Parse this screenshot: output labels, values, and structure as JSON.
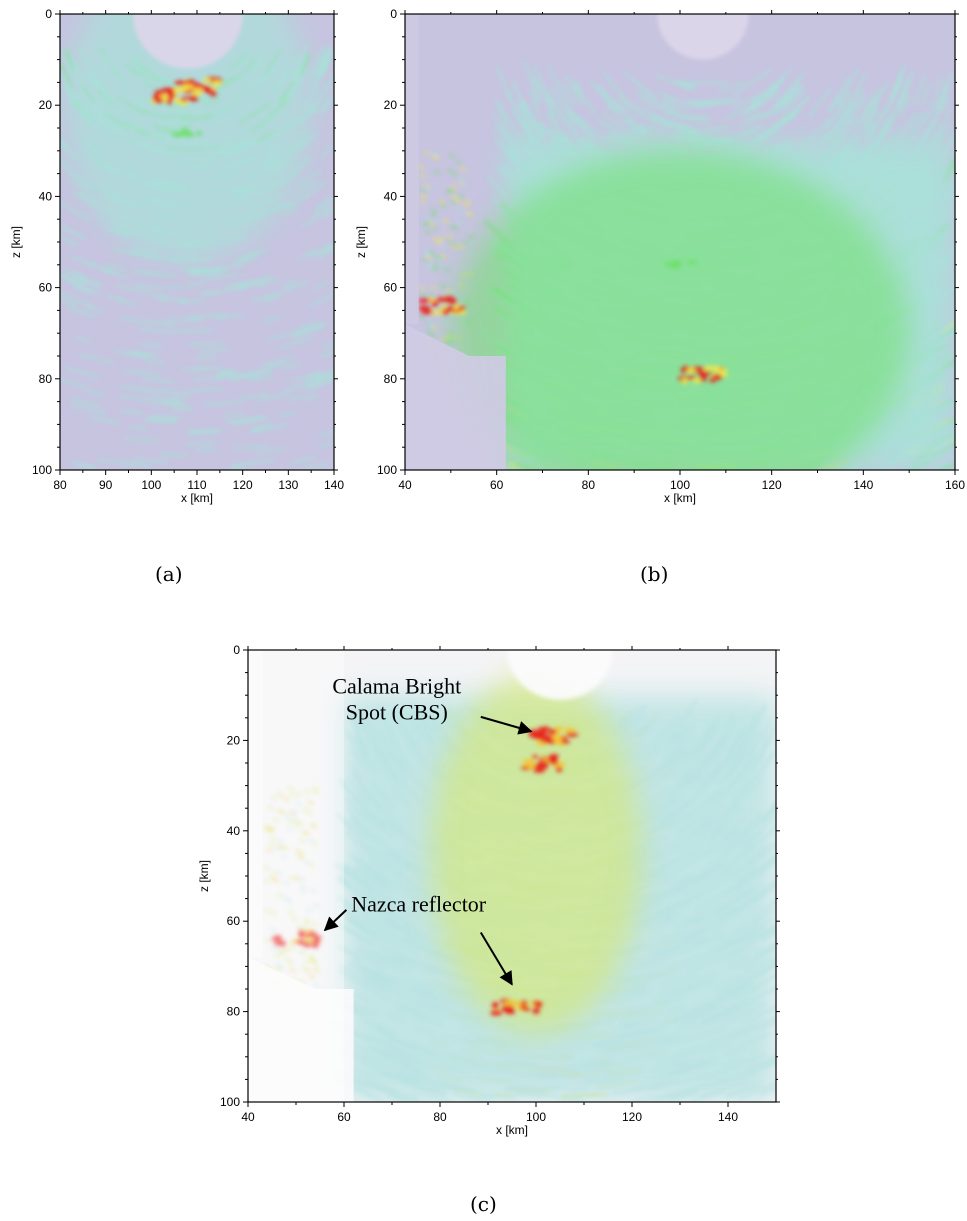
{
  "figure": {
    "captions": {
      "a": "(a)",
      "b": "(b)",
      "c": "(c)"
    }
  },
  "chart_data": [
    {
      "id": "a",
      "type": "heatmap",
      "xlabel": "x [km]",
      "ylabel": "z [km]",
      "xlim": [
        80,
        140
      ],
      "ylim": [
        0,
        100
      ],
      "y_inverted": true,
      "xticks": [
        80,
        90,
        100,
        110,
        120,
        130,
        140
      ],
      "yticks": [
        0,
        20,
        40,
        60,
        80,
        100
      ],
      "colormap": [
        "#c7c4e0",
        "#a9e1d9",
        "#6fe06b",
        "#f2e84a",
        "#e8241c"
      ],
      "features": [
        {
          "kind": "bright",
          "x": 110,
          "z": 16,
          "strength": 1.0
        },
        {
          "kind": "bright",
          "x": 105,
          "z": 18,
          "strength": 0.9
        },
        {
          "kind": "moderate",
          "x": 108,
          "z": 26,
          "strength": 0.5
        }
      ]
    },
    {
      "id": "b",
      "type": "heatmap",
      "xlabel": "x [km]",
      "ylabel": "z [km]",
      "xlim": [
        40,
        160
      ],
      "ylim": [
        0,
        100
      ],
      "y_inverted": true,
      "xticks": [
        40,
        60,
        80,
        100,
        120,
        140,
        160
      ],
      "yticks": [
        0,
        20,
        40,
        60,
        80,
        100
      ],
      "colormap": [
        "#c7c4e0",
        "#a9e1d9",
        "#6fe06b",
        "#f2e84a",
        "#e8241c"
      ],
      "features": [
        {
          "kind": "bright",
          "x": 105,
          "z": 79,
          "strength": 1.0
        },
        {
          "kind": "bright",
          "x": 48,
          "z": 64,
          "strength": 0.8
        },
        {
          "kind": "moderate",
          "x": 100,
          "z": 55,
          "strength": 0.4
        }
      ]
    },
    {
      "id": "c",
      "type": "heatmap",
      "xlabel": "x [km]",
      "ylabel": "z [km]",
      "xlim": [
        40,
        150
      ],
      "ylim": [
        0,
        100
      ],
      "y_inverted": true,
      "xticks": [
        40,
        60,
        80,
        100,
        120,
        140
      ],
      "yticks": [
        0,
        20,
        40,
        60,
        80,
        100
      ],
      "colormap": [
        "#f4f4f6",
        "#b9e2e2",
        "#d8e870",
        "#f2c83a",
        "#e8241c"
      ],
      "annotations": [
        {
          "text_lines": [
            "Calama Bright",
            "Spot (CBS)"
          ],
          "target_x": 99,
          "target_z": 18
        },
        {
          "text_lines": [
            "Nazca reflector"
          ],
          "targets": [
            [
              56,
              62
            ],
            [
              95,
              74
            ]
          ]
        }
      ],
      "features": [
        {
          "kind": "bright",
          "x": 103,
          "z": 19,
          "strength": 1.0
        },
        {
          "kind": "bright",
          "x": 101,
          "z": 25,
          "strength": 0.8
        },
        {
          "kind": "bright",
          "x": 96,
          "z": 79,
          "strength": 1.0
        },
        {
          "kind": "bright",
          "x": 50,
          "z": 64,
          "strength": 0.8
        }
      ]
    }
  ]
}
